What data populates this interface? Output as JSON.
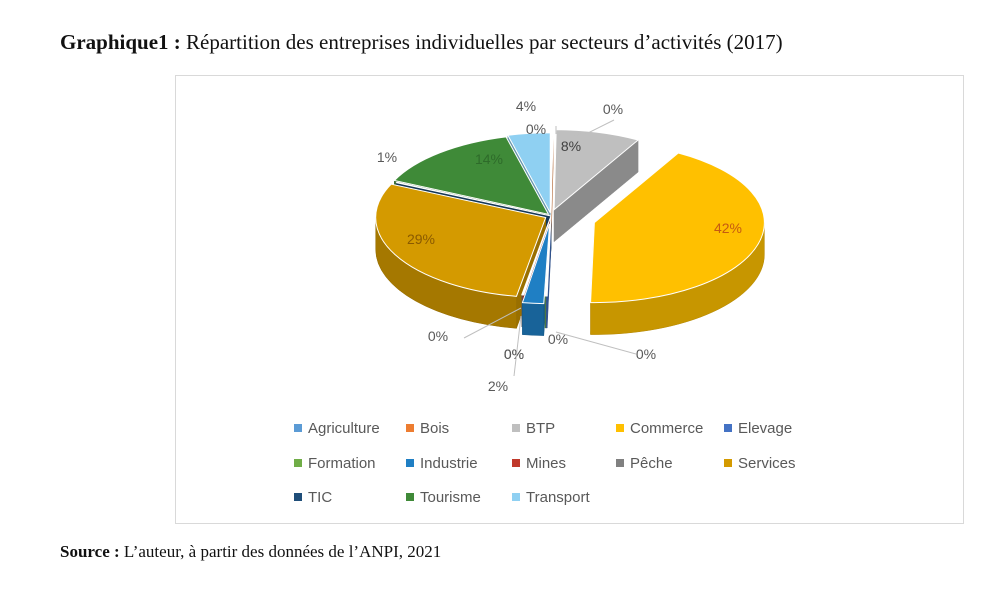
{
  "title": {
    "prefix": "Graphique1 :",
    "text": "Répartition des entreprises individuelles par secteurs d’activités (2017)"
  },
  "source": {
    "prefix": "Source :",
    "text": "L’auteur, à partir des données de l’ANPI, 2021"
  },
  "chart_data": {
    "type": "pie",
    "style": "3d-exploded",
    "title": "Répartition des entreprises individuelles par secteurs d’activités (2017)",
    "legend_position": "bottom",
    "unit": "%",
    "slices": [
      {
        "name": "Agriculture",
        "value": 0,
        "label": "0%",
        "color": "#5b9bd5"
      },
      {
        "name": "Bois",
        "value": 0,
        "label": "0%",
        "color": "#ed7d31"
      },
      {
        "name": "BTP",
        "value": 8,
        "label": "8%",
        "color": "#bfbfbf"
      },
      {
        "name": "Commerce",
        "value": 42,
        "label": "42%",
        "color": "#ffc000"
      },
      {
        "name": "Elevage",
        "value": 0,
        "label": "0%",
        "color": "#4472c4"
      },
      {
        "name": "Formation",
        "value": 0,
        "label": "0%",
        "color": "#70ad47"
      },
      {
        "name": "Industrie",
        "value": 2,
        "label": "2%",
        "color": "#1f7fc4"
      },
      {
        "name": "Mines",
        "value": 0,
        "label": "0%",
        "color": "#c0392b"
      },
      {
        "name": "Pêche",
        "value": 0,
        "label": "0%",
        "color": "#808080"
      },
      {
        "name": "Services",
        "value": 29,
        "label": "29%",
        "color": "#d49a00"
      },
      {
        "name": "TIC",
        "value": 0,
        "label": "0%",
        "color": "#1f4e79"
      },
      {
        "name": "Tourisme",
        "value": 14,
        "label": "14%",
        "color": "#3f8a38"
      },
      {
        "name": "Transport",
        "value": 4,
        "label": "4%",
        "color": "#8fd0f2"
      }
    ],
    "extra_labels": [
      "1%"
    ]
  }
}
